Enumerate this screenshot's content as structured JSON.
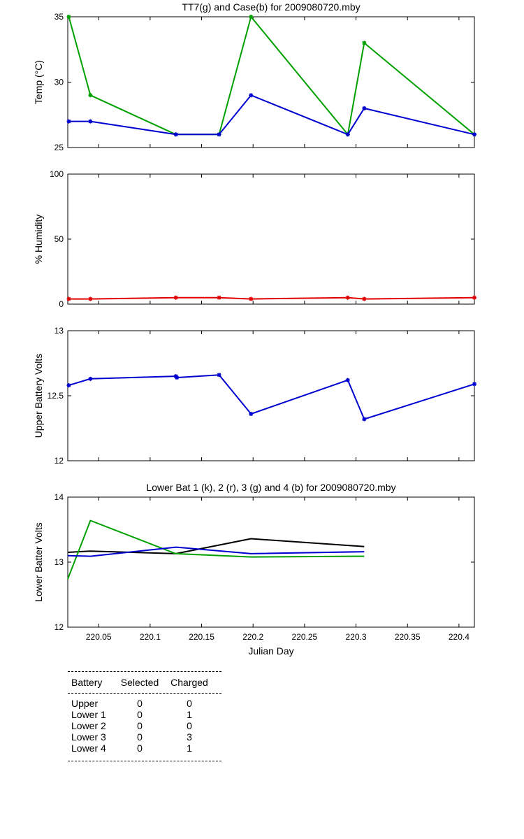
{
  "chart_data": [
    {
      "type": "line",
      "title": "TT7(g) and Case(b) for 2009080720.mby",
      "xlabel": "",
      "ylabel": "Temp  (°C)",
      "xlim": [
        220.02,
        220.415
      ],
      "ylim": [
        25,
        35
      ],
      "yticks": [
        25,
        30,
        35
      ],
      "grid": false,
      "markers": true,
      "x": [
        220.021,
        220.042,
        220.125,
        220.167,
        220.198,
        220.292,
        220.308,
        220.415
      ],
      "series": [
        {
          "color": "#00a000",
          "values": [
            35,
            29,
            26,
            26,
            35,
            26,
            33,
            26
          ]
        },
        {
          "color": "#0000d0",
          "values": [
            27,
            27,
            26,
            26,
            29,
            26,
            28,
            26
          ]
        }
      ]
    },
    {
      "type": "line",
      "title": "",
      "xlabel": "",
      "ylabel": "% Humidity",
      "xlim": [
        220.02,
        220.415
      ],
      "ylim": [
        0,
        100
      ],
      "yticks": [
        0,
        50,
        100
      ],
      "grid": false,
      "markers": true,
      "x": [
        220.021,
        220.042,
        220.125,
        220.167,
        220.198,
        220.292,
        220.308,
        220.415
      ],
      "series": [
        {
          "color": "#e00000",
          "values": [
            4,
            4,
            5,
            5,
            4,
            5,
            4,
            5
          ]
        }
      ]
    },
    {
      "type": "line",
      "title": "",
      "xlabel": "",
      "ylabel": "Upper Battery Volts",
      "xlim": [
        220.02,
        220.415
      ],
      "ylim": [
        12,
        13
      ],
      "yticks": [
        12,
        12.5,
        13
      ],
      "grid": false,
      "markers": true,
      "x": [
        220.021,
        220.042,
        220.125,
        220.126,
        220.167,
        220.198,
        220.292,
        220.308,
        220.415
      ],
      "series": [
        {
          "color": "#0000d0",
          "values": [
            12.58,
            12.63,
            12.65,
            12.64,
            12.66,
            12.36,
            12.62,
            12.32,
            12.59
          ]
        }
      ]
    },
    {
      "type": "line",
      "title": "Lower Bat 1 (k), 2 (r), 3 (g) and 4 (b) for 2009080720.mby",
      "xlabel": "Julian Day",
      "ylabel": "Lower Batter Volts",
      "xlim": [
        220.02,
        220.415
      ],
      "ylim": [
        12,
        14
      ],
      "yticks": [
        12,
        13,
        14
      ],
      "xticks": [
        "220.05",
        "220.1",
        "220.15",
        "220.2",
        "220.25",
        "220.3",
        "220.35",
        "220.4"
      ],
      "grid": false,
      "markers": false,
      "series": [
        {
          "color": "#000000",
          "x": [
            220.02,
            220.042,
            220.125,
            220.198,
            220.308
          ],
          "values": [
            13.15,
            13.17,
            13.13,
            13.36,
            13.24
          ]
        },
        {
          "color": "#00a000",
          "x": [
            220.02,
            220.042,
            220.125,
            220.198,
            220.308
          ],
          "values": [
            12.74,
            13.64,
            13.13,
            13.08,
            13.09
          ]
        },
        {
          "color": "#0000d0",
          "x": [
            220.02,
            220.042,
            220.125,
            220.198,
            220.308
          ],
          "values": [
            13.1,
            13.09,
            13.23,
            13.13,
            13.16
          ]
        }
      ]
    }
  ],
  "summary_table": {
    "headers": [
      "Battery",
      "Selected",
      "Charged"
    ],
    "rows": [
      [
        "Upper",
        "0",
        "0"
      ],
      [
        "Lower 1",
        "0",
        "1"
      ],
      [
        "Lower 2",
        "0",
        "0"
      ],
      [
        "Lower 3",
        "0",
        "3"
      ],
      [
        "Lower 4",
        "0",
        "1"
      ]
    ]
  }
}
